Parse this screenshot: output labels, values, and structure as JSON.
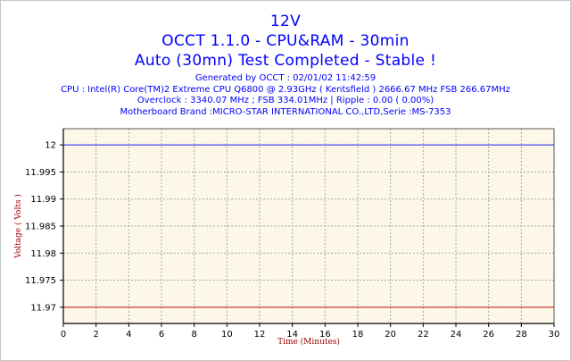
{
  "header": {
    "title_line1": "12V",
    "title_line2": "OCCT 1.1.0 - CPU&RAM - 30min",
    "title_line3": "Auto (30mn) Test Completed - Stable !",
    "info_generated": "Generated by OCCT : 02/01/02 11:42:59",
    "info_cpu": "CPU : Intel(R) Core(TM)2 Extreme CPU Q6800  @ 2.93GHz ( Kentsfield ) 2666.67 MHz FSB 266.67MHz",
    "info_overclock": "Overclock : 3340.07 MHz ; FSB 334.01MHz | Ripple : 0.00 ( 0.00%)",
    "info_motherboard": "Motherboard Brand :MICRO-STAR INTERNATIONAL CO.,LTD,Serie :MS-7353"
  },
  "chart_data": {
    "type": "line",
    "xlabel": "Time (Minutes)",
    "ylabel": "Voltage ( Volts )",
    "xlim": [
      0,
      30
    ],
    "ylim": [
      11.967,
      12.003
    ],
    "x_ticks": [
      0,
      2,
      4,
      6,
      8,
      10,
      12,
      14,
      16,
      18,
      20,
      22,
      24,
      26,
      28,
      30
    ],
    "x_tick_labels": [
      "0",
      "2",
      "4",
      "6",
      "8",
      "10",
      "12",
      "14",
      "16",
      "18",
      "20",
      "22",
      "24",
      "26",
      "28",
      "30"
    ],
    "y_ticks": [
      11.97,
      11.975,
      11.98,
      11.985,
      11.99,
      11.995,
      12
    ],
    "y_tick_labels": [
      "11.97",
      "11.975",
      "11.98",
      "11.985",
      "11.99",
      "11.995",
      "12"
    ],
    "grid": true,
    "series": [
      {
        "color": "#3a3af0",
        "x": [
          0,
          30
        ],
        "y": [
          12,
          12
        ]
      },
      {
        "color": "#cc2a2a",
        "x": [
          0,
          30
        ],
        "y": [
          11.97,
          11.97
        ]
      }
    ],
    "colors": {
      "plot_background": "#fdf7e7",
      "grid": "#a8a8a8",
      "title_text": "#0000ff",
      "axis_title_text": "#a00000"
    }
  }
}
